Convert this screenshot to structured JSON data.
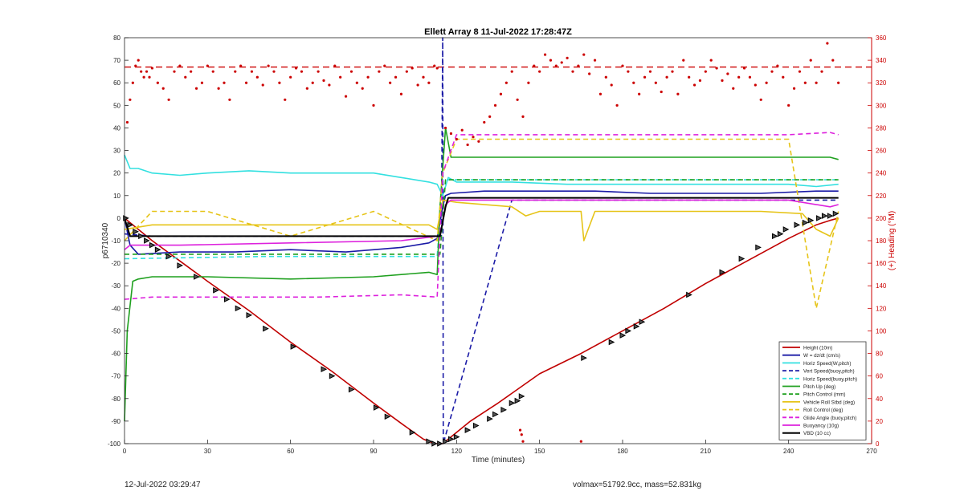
{
  "chart_data": {
    "type": "line",
    "title": "Ellett Array 8 11-Jul-2022 17:28:47Z",
    "xlabel": "Time (minutes)",
    "ylabel": "p6710340",
    "y2label": "(+) Heading (°M)",
    "xlim": [
      0,
      270
    ],
    "ylim": [
      -100,
      80
    ],
    "y2lim": [
      0,
      360
    ],
    "xticks": [
      "0",
      "30",
      "60",
      "90",
      "120",
      "150",
      "180",
      "210",
      "240",
      "270"
    ],
    "yticks": [
      "-100",
      "-90",
      "-80",
      "-70",
      "-60",
      "-50",
      "-40",
      "-30",
      "-20",
      "-10",
      "0",
      "10",
      "20",
      "30",
      "40",
      "50",
      "60",
      "70",
      "80"
    ],
    "y2ticks": [
      "0",
      "20",
      "40",
      "60",
      "80",
      "100",
      "120",
      "140",
      "160",
      "180",
      "200",
      "220",
      "240",
      "260",
      "280",
      "300",
      "320",
      "340",
      "360"
    ],
    "grid": false,
    "legend_position": "bottom-right",
    "heading_reference_line": 334,
    "dive_apogee_minute": 115,
    "series": [
      {
        "name": "Height (10m)",
        "color": "#c00000",
        "style": "solid",
        "x": [
          0,
          10,
          20,
          30,
          45,
          60,
          75,
          90,
          100,
          108,
          112,
          114,
          115,
          118,
          125,
          135,
          150,
          165,
          180,
          195,
          210,
          225,
          240,
          250,
          255,
          258
        ],
        "y": [
          0,
          -10,
          -19,
          -28,
          -41,
          -55,
          -68,
          -82,
          -91,
          -98,
          -100,
          -100,
          -100,
          -97,
          -90,
          -82,
          -69,
          -60,
          -50,
          -40,
          -29,
          -19,
          -9,
          -3,
          -1,
          0
        ]
      },
      {
        "name": "W = dz/dt (cm/s)",
        "color": "#1a1aa6",
        "style": "solid",
        "x": [
          0,
          2,
          5,
          20,
          40,
          60,
          80,
          100,
          110,
          113,
          115,
          116,
          118,
          130,
          150,
          170,
          190,
          210,
          230,
          250,
          258
        ],
        "y": [
          0,
          -12,
          -16,
          -15,
          -15,
          -14,
          -15,
          -13,
          -11,
          -9,
          5,
          10,
          11,
          12,
          12,
          12,
          11,
          11,
          11,
          12,
          12
        ]
      },
      {
        "name": "Horiz Speed(W,pitch)",
        "color": "#33e0e0",
        "style": "solid",
        "x": [
          0,
          2,
          5,
          10,
          20,
          30,
          45,
          60,
          75,
          90,
          100,
          110,
          113,
          115,
          117,
          120,
          140,
          160,
          180,
          200,
          220,
          240,
          250,
          258
        ],
        "y": [
          28,
          22,
          22,
          20,
          19,
          20,
          21,
          20,
          20,
          20,
          18,
          16,
          15,
          10,
          18,
          16,
          16,
          15,
          15,
          15,
          15,
          15,
          14,
          15
        ]
      },
      {
        "name": "Vert Speed(buoy,pitch)",
        "color": "#1a1aa6",
        "style": "dashed",
        "x": [
          0,
          10,
          50,
          100,
          114.5,
          115,
          115.2,
          140,
          200,
          258
        ],
        "y": [
          -7,
          -8,
          -8,
          -8,
          -8,
          80,
          -100,
          8,
          8,
          8
        ]
      },
      {
        "name": "Horiz Speed(buoy,pitch)",
        "color": "#33e0e0",
        "style": "dashed",
        "x": [
          0,
          50,
          100,
          113,
          115,
          150,
          200,
          258
        ],
        "y": [
          -18,
          -17,
          -17,
          -17,
          17,
          17,
          17,
          17
        ]
      },
      {
        "name": "Pitch Up (deg)",
        "color": "#1fa01f",
        "style": "solid",
        "x": [
          0,
          1,
          3,
          5,
          10,
          30,
          60,
          90,
          110,
          113,
          114,
          116,
          118,
          140,
          170,
          200,
          230,
          250,
          255,
          258
        ],
        "y": [
          -90,
          -50,
          -28,
          -27,
          -26,
          -26,
          -27,
          -26,
          -24,
          -25,
          5,
          40,
          27,
          27,
          27,
          27,
          27,
          27,
          27,
          26
        ]
      },
      {
        "name": "Pitch Control (mm)",
        "color": "#1fa01f",
        "style": "dashed",
        "x": [
          0,
          10,
          60,
          110,
          114,
          116,
          150,
          200,
          258
        ],
        "y": [
          -16,
          -16,
          -16,
          -16,
          -16,
          17,
          17,
          17,
          17
        ]
      },
      {
        "name": "Vehicle Roll Stbd (deg)",
        "color": "#e6c419",
        "style": "solid",
        "x": [
          0,
          10,
          30,
          60,
          90,
          110,
          113,
          115,
          120,
          140,
          145,
          150,
          165,
          166,
          170,
          200,
          230,
          245,
          250,
          255,
          258
        ],
        "y": [
          -5,
          -3,
          -3,
          -3,
          -3,
          -3,
          -5,
          8,
          7,
          5,
          1,
          3,
          3,
          -10,
          3,
          3,
          3,
          2,
          -5,
          -8,
          0
        ]
      },
      {
        "name": "Roll Control (deg)",
        "color": "#e6c419",
        "style": "dashed",
        "x": [
          0,
          10,
          30,
          60,
          90,
          113,
          115,
          120,
          150,
          180,
          210,
          240,
          250,
          258
        ],
        "y": [
          -10,
          3,
          3,
          -8,
          3,
          -10,
          20,
          35,
          35,
          35,
          35,
          35,
          -40,
          3
        ]
      },
      {
        "name": "Glide Angle (buoy,pitch)",
        "color": "#dd22dd",
        "style": "dashed",
        "x": [
          0,
          10,
          40,
          70,
          100,
          113,
          115,
          120,
          150,
          180,
          210,
          240,
          255,
          258
        ],
        "y": [
          -36,
          -35,
          -35,
          -35,
          -34,
          -35,
          20,
          37,
          37,
          37,
          37,
          37,
          38,
          37
        ]
      },
      {
        "name": "Buoyancy (10g)",
        "color": "#dd22dd",
        "style": "solid",
        "x": [
          0,
          2,
          20,
          60,
          100,
          113,
          114,
          116,
          118,
          150,
          200,
          240,
          255,
          258
        ],
        "y": [
          -14,
          -12,
          -12,
          -11,
          -10,
          -8,
          -8,
          6,
          8,
          8,
          8,
          8,
          5,
          6
        ]
      },
      {
        "name": "VBD (10 cc)",
        "color": "#000000",
        "style": "solid",
        "x": [
          0,
          2,
          5,
          50,
          110,
          113,
          114,
          116,
          117,
          150,
          200,
          258
        ],
        "y": [
          0,
          -8,
          -8,
          -8,
          -8,
          -8,
          -8,
          5,
          9,
          9,
          9,
          9
        ]
      }
    ],
    "heading_points": {
      "name": "(+) Heading (°M)",
      "color": "#cc0000",
      "x": [
        1,
        2,
        3,
        4,
        5,
        6,
        7,
        8,
        9,
        10,
        12,
        14,
        16,
        18,
        20,
        22,
        24,
        26,
        28,
        30,
        32,
        34,
        36,
        38,
        40,
        42,
        44,
        46,
        48,
        50,
        52,
        54,
        56,
        58,
        60,
        62,
        64,
        66,
        68,
        70,
        72,
        74,
        76,
        78,
        80,
        82,
        84,
        86,
        88,
        90,
        92,
        94,
        96,
        98,
        100,
        102,
        104,
        106,
        108,
        110,
        112,
        113,
        116,
        118,
        120,
        122,
        124,
        126,
        128,
        130,
        132,
        134,
        136,
        138,
        140,
        142,
        144,
        146,
        148,
        150,
        152,
        154,
        156,
        158,
        160,
        162,
        164,
        166,
        168,
        170,
        172,
        174,
        176,
        178,
        180,
        182,
        184,
        186,
        188,
        190,
        192,
        194,
        196,
        198,
        200,
        202,
        204,
        206,
        208,
        210,
        212,
        214,
        216,
        218,
        220,
        222,
        224,
        226,
        228,
        230,
        232,
        234,
        236,
        238,
        240,
        242,
        244,
        246,
        248,
        250,
        252,
        254,
        256,
        258
      ],
      "y": [
        285,
        305,
        320,
        335,
        340,
        330,
        325,
        330,
        325,
        333,
        320,
        315,
        305,
        330,
        335,
        325,
        330,
        315,
        320,
        335,
        330,
        315,
        320,
        305,
        330,
        335,
        320,
        330,
        325,
        318,
        335,
        330,
        320,
        305,
        325,
        333,
        330,
        315,
        320,
        330,
        322,
        318,
        335,
        325,
        308,
        330,
        320,
        315,
        325,
        300,
        330,
        335,
        320,
        325,
        310,
        330,
        333,
        318,
        325,
        320,
        335,
        333,
        280,
        275,
        270,
        278,
        265,
        272,
        268,
        285,
        290,
        300,
        310,
        320,
        330,
        305,
        290,
        320,
        335,
        330,
        345,
        340,
        335,
        338,
        342,
        330,
        335,
        345,
        328,
        340,
        310,
        325,
        318,
        300,
        335,
        330,
        320,
        310,
        325,
        330,
        320,
        312,
        325,
        330,
        310,
        340,
        325,
        318,
        322,
        330,
        340,
        333,
        322,
        328,
        315,
        325,
        333,
        325,
        318,
        305,
        320,
        330,
        335,
        325,
        300,
        315,
        330,
        320,
        340,
        320,
        330,
        355,
        340,
        320
      ]
    },
    "heading_outliers": {
      "x": [
        143,
        143.5,
        144,
        165,
        245,
        246,
        248,
        250,
        252,
        254,
        256
      ],
      "y": [
        12,
        8,
        2,
        2,
        20,
        40,
        30,
        55,
        38,
        20,
        8
      ]
    },
    "vbd_markers": {
      "x": [
        0.5,
        2,
        4,
        6,
        8,
        10,
        12,
        16,
        20,
        26,
        33,
        37,
        41,
        45,
        51,
        61,
        72,
        75,
        82,
        91,
        95,
        104,
        110,
        112,
        114,
        116,
        118,
        120,
        124,
        127,
        132,
        134,
        137,
        140,
        142,
        143.5,
        166,
        176,
        180,
        182,
        185,
        187,
        204,
        216,
        223,
        229,
        235,
        237,
        239,
        243,
        246,
        248,
        251,
        253,
        255,
        257
      ],
      "y": [
        0,
        -3,
        -6,
        -8,
        -10,
        -12,
        -14,
        -17,
        -21,
        -26,
        -32,
        -36,
        -40,
        -43,
        -49,
        -57,
        -67,
        -70,
        -76,
        -84,
        -88,
        -95,
        -99,
        -100,
        -100,
        -99,
        -98,
        -97,
        -94,
        -92,
        -89,
        -87,
        -85,
        -82,
        -81,
        -79,
        -62,
        -55,
        -52,
        -50,
        -48,
        -46,
        -34,
        -24,
        -18,
        -13,
        -8,
        -7,
        -5,
        -3,
        -2,
        -1,
        0,
        1,
        1,
        2
      ]
    }
  },
  "footer": {
    "left": "12-Jul-2022 03:29:47",
    "right": "volmax=51792.9cc, mass=52.831kg"
  }
}
